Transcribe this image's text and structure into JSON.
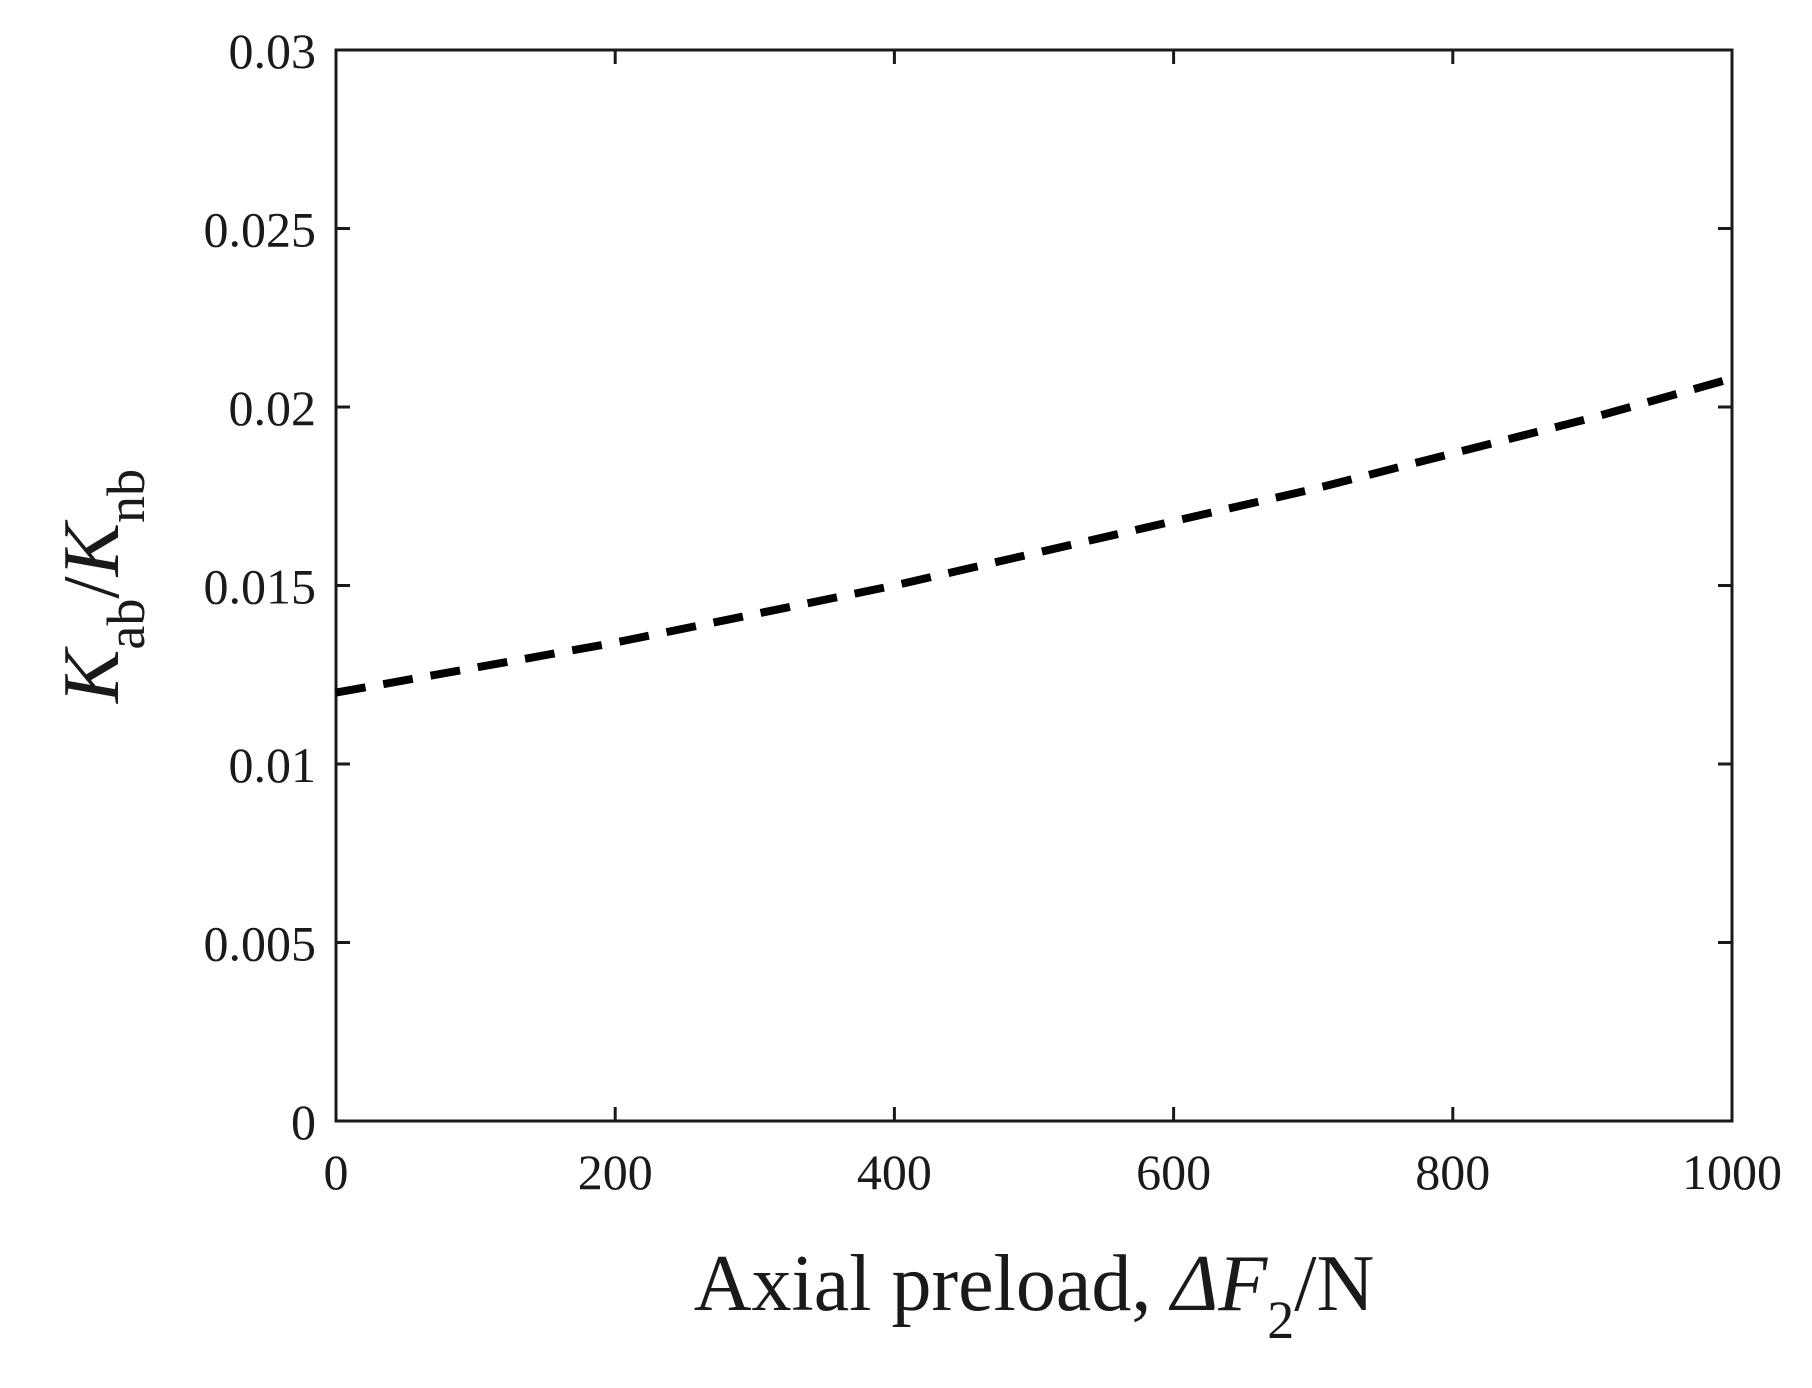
{
  "chart_data": {
    "type": "line",
    "title": "",
    "xlabel": {
      "prefix": "Axial preload, ",
      "symbol": "ΔF",
      "subscript": "2",
      "suffix": "/N"
    },
    "ylabel": {
      "num_symbol": "K",
      "num_subscript": "ab",
      "separator": "/",
      "den_symbol": "K",
      "den_subscript": "nb"
    },
    "xlim": [
      0,
      1000
    ],
    "ylim": [
      0,
      0.03
    ],
    "xticks": [
      0,
      200,
      400,
      600,
      800,
      1000
    ],
    "xtick_labels": [
      "0",
      "200",
      "400",
      "600",
      "800",
      "1000"
    ],
    "yticks": [
      0,
      0.005,
      0.01,
      0.015,
      0.02,
      0.025,
      0.03
    ],
    "ytick_labels": [
      "0",
      "0.005",
      "0.01",
      "0.015",
      "0.02",
      "0.025",
      "0.03"
    ],
    "grid": false,
    "series": [
      {
        "line_style": "dashed",
        "color": "#000000",
        "x": [
          0,
          100,
          200,
          300,
          400,
          500,
          600,
          700,
          800,
          900,
          1000
        ],
        "y": [
          0.012,
          0.0127,
          0.0134,
          0.0142,
          0.015,
          0.0159,
          0.0168,
          0.0177,
          0.0187,
          0.0197,
          0.0208
        ]
      }
    ]
  }
}
